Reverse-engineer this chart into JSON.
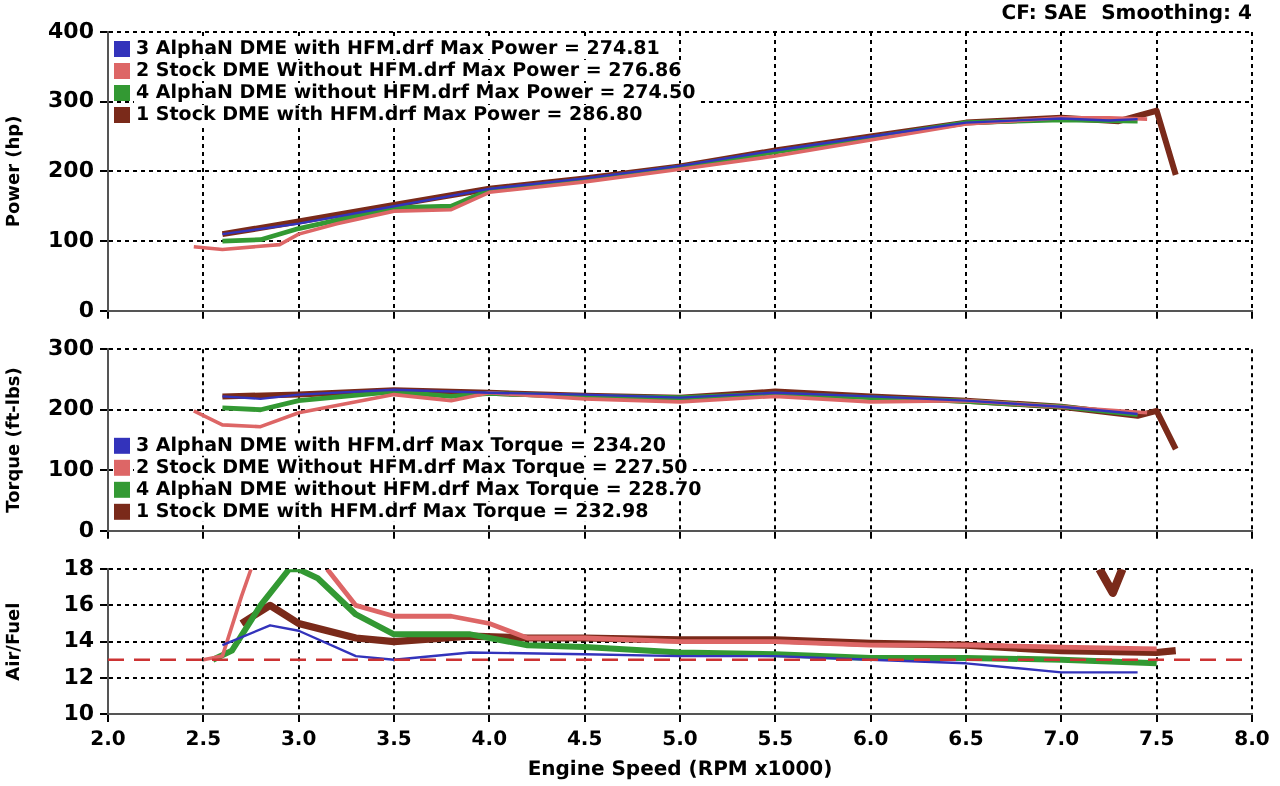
{
  "chart_data": [
    {
      "type": "line",
      "annotations": [
        "CF: SAE  Smoothing: 4"
      ],
      "ylabel": "Power (hp)",
      "xlim": [
        2.0,
        8.0
      ],
      "xticks": [
        {
          "value": 2.0,
          "label": null
        },
        {
          "value": 2.5,
          "label": null
        },
        {
          "value": 3.0,
          "label": null
        },
        {
          "value": 3.5,
          "label": null
        },
        {
          "value": 4.0,
          "label": null
        },
        {
          "value": 4.5,
          "label": null
        },
        {
          "value": 5.0,
          "label": null
        },
        {
          "value": 5.5,
          "label": null
        },
        {
          "value": 6.0,
          "label": null
        },
        {
          "value": 6.5,
          "label": null
        },
        {
          "value": 7.0,
          "label": null
        },
        {
          "value": 7.5,
          "label": null
        },
        {
          "value": 8.0,
          "label": null
        }
      ],
      "ylim": [
        0,
        400
      ],
      "yticks": [
        0,
        100,
        200,
        300,
        400
      ],
      "grid": true,
      "legend": "top left",
      "tick_labels": "y",
      "series": [
        {
          "name": "3 AlphaN DME with HFM.drf Max Power = 274.81",
          "color": "#3333bb",
          "x": [
            2.6,
            3.0,
            3.5,
            4.0,
            4.5,
            5.0,
            5.5,
            6.0,
            6.5,
            7.0,
            7.25,
            7.4
          ],
          "values": [
            110,
            125,
            150,
            175,
            190,
            208,
            230,
            250,
            270,
            276,
            273,
            275
          ]
        },
        {
          "name": "2 Stock DME Without HFM.drf Max Power = 276.86",
          "color": "#dd6666",
          "x": [
            2.45,
            2.6,
            2.9,
            3.0,
            3.2,
            3.5,
            3.8,
            4.0,
            4.5,
            5.0,
            5.5,
            6.0,
            6.5,
            7.0,
            7.25,
            7.45
          ],
          "values": [
            92,
            88,
            95,
            110,
            125,
            143,
            145,
            170,
            185,
            203,
            222,
            245,
            268,
            277,
            277,
            275
          ]
        },
        {
          "name": "4 AlphaN DME without HFM.drf Max Power = 274.50",
          "color": "#339933",
          "x": [
            2.6,
            2.8,
            3.0,
            3.5,
            3.8,
            4.0,
            4.5,
            5.0,
            5.5,
            6.0,
            6.5,
            7.0,
            7.4
          ],
          "values": [
            100,
            102,
            118,
            148,
            150,
            173,
            188,
            206,
            228,
            248,
            270,
            274,
            272
          ]
        },
        {
          "name": "1 Stock DME with HFM.drf Max Power = 286.80",
          "color": "#7a2a1a",
          "x": [
            2.6,
            3.0,
            3.5,
            4.0,
            4.5,
            5.0,
            5.5,
            6.0,
            6.5,
            7.0,
            7.3,
            7.5,
            7.6
          ],
          "values": [
            110,
            128,
            152,
            175,
            190,
            207,
            230,
            250,
            270,
            277,
            272,
            287,
            195
          ]
        }
      ]
    },
    {
      "type": "line",
      "ylabel": "Torque (ft-lbs)",
      "xlim": [
        2.0,
        8.0
      ],
      "xticks": [
        {
          "value": 2.0,
          "label": null
        },
        {
          "value": 2.5,
          "label": null
        },
        {
          "value": 3.0,
          "label": null
        },
        {
          "value": 3.5,
          "label": null
        },
        {
          "value": 4.0,
          "label": null
        },
        {
          "value": 4.5,
          "label": null
        },
        {
          "value": 5.0,
          "label": null
        },
        {
          "value": 5.5,
          "label": null
        },
        {
          "value": 6.0,
          "label": null
        },
        {
          "value": 6.5,
          "label": null
        },
        {
          "value": 7.0,
          "label": null
        },
        {
          "value": 7.5,
          "label": null
        },
        {
          "value": 8.0,
          "label": null
        }
      ],
      "ylim": [
        0,
        300
      ],
      "yticks": [
        0,
        100,
        200,
        300
      ],
      "grid": true,
      "legend": "bottom left",
      "tick_labels": "y",
      "series": [
        {
          "name": "3 AlphaN DME with HFM.drf Max Torque = 234.20",
          "color": "#3333bb",
          "x": [
            2.6,
            2.8,
            3.0,
            3.5,
            4.0,
            4.5,
            5.0,
            5.5,
            6.0,
            6.5,
            7.0,
            7.4
          ],
          "values": [
            222,
            218,
            225,
            233,
            228,
            225,
            220,
            228,
            222,
            215,
            205,
            193
          ]
        },
        {
          "name": "2 Stock DME Without HFM.drf Max Torque = 227.50",
          "color": "#dd6666",
          "x": [
            2.45,
            2.6,
            2.8,
            3.0,
            3.5,
            3.8,
            4.0,
            4.5,
            5.0,
            5.5,
            6.0,
            6.5,
            7.0,
            7.45
          ],
          "values": [
            198,
            175,
            172,
            195,
            225,
            215,
            228,
            218,
            213,
            222,
            213,
            215,
            205,
            195
          ]
        },
        {
          "name": "4 AlphaN DME without HFM.drf Max Torque = 228.70",
          "color": "#339933",
          "x": [
            2.6,
            2.8,
            3.0,
            3.5,
            3.8,
            4.0,
            4.5,
            5.0,
            5.5,
            6.0,
            6.5,
            7.0,
            7.4
          ],
          "values": [
            203,
            200,
            215,
            230,
            222,
            227,
            222,
            220,
            226,
            220,
            214,
            205,
            192
          ]
        },
        {
          "name": "1 Stock DME with HFM.drf Max Torque = 232.98",
          "color": "#7a2a1a",
          "x": [
            2.6,
            3.0,
            3.5,
            4.0,
            4.5,
            5.0,
            5.5,
            6.0,
            6.5,
            7.0,
            7.4,
            7.5,
            7.6
          ],
          "values": [
            222,
            225,
            232,
            228,
            223,
            220,
            230,
            222,
            215,
            205,
            190,
            198,
            135
          ]
        }
      ]
    },
    {
      "type": "line",
      "ylabel": "Air/Fuel",
      "xlabel": "Engine Speed (RPM x1000)",
      "xlim": [
        2.0,
        8.0
      ],
      "xticks": [
        {
          "value": 2.0,
          "label": "2.0"
        },
        {
          "value": 2.5,
          "label": "2.5"
        },
        {
          "value": 3.0,
          "label": "3.0"
        },
        {
          "value": 3.5,
          "label": "3.5"
        },
        {
          "value": 4.0,
          "label": "4.0"
        },
        {
          "value": 4.5,
          "label": "4.5"
        },
        {
          "value": 5.0,
          "label": "5.0"
        },
        {
          "value": 5.5,
          "label": "5.5"
        },
        {
          "value": 6.0,
          "label": "6.0"
        },
        {
          "value": 6.5,
          "label": "6.5"
        },
        {
          "value": 7.0,
          "label": "7.0"
        },
        {
          "value": 7.5,
          "label": "7.5"
        },
        {
          "value": 8.0,
          "label": "8.0"
        }
      ],
      "ylim": [
        10,
        18
      ],
      "yticks": [
        10,
        12,
        14,
        16,
        18
      ],
      "grid": true,
      "ref_lines": [
        {
          "axis": "y",
          "value": 13,
          "color": "#cc3333",
          "line_style": "dashed"
        }
      ],
      "series": [
        {
          "color": "#3333bb",
          "x": [
            2.6,
            2.85,
            3.0,
            3.3,
            3.5,
            3.9,
            4.5,
            5.0,
            5.5,
            6.0,
            6.5,
            7.0,
            7.4
          ],
          "values": [
            13.8,
            14.9,
            14.6,
            13.2,
            13.0,
            13.4,
            13.3,
            13.2,
            13.2,
            13.0,
            12.8,
            12.3,
            12.3
          ]
        },
        {
          "color": "#dd6666",
          "x": [
            2.5,
            2.6,
            2.7,
            2.75
          ],
          "values": [
            13,
            13.2,
            16.5,
            18
          ]
        },
        {
          "color": "#dd6666",
          "x": [
            3.15,
            3.3,
            3.5,
            3.8,
            4.0,
            4.2,
            4.5,
            5.0,
            5.5,
            6.0,
            6.5,
            7.0,
            7.5
          ],
          "values": [
            18,
            16,
            15.4,
            15.4,
            15.0,
            14.2,
            14.2,
            14.0,
            14.0,
            13.8,
            13.8,
            13.7,
            13.6
          ]
        },
        {
          "color": "#339933",
          "x": [
            2.55,
            2.65,
            2.8,
            2.95,
            3.0,
            3.1,
            3.3,
            3.5,
            3.9,
            4.2,
            4.5,
            5.0,
            5.5,
            6.0,
            6.5,
            7.0,
            7.5
          ],
          "values": [
            13,
            13.5,
            16,
            18,
            18,
            17.5,
            15.5,
            14.4,
            14.4,
            13.8,
            13.7,
            13.4,
            13.3,
            13.1,
            13.1,
            13.0,
            12.8
          ]
        },
        {
          "color": "#7a2a1a",
          "x": [
            2.7,
            2.85,
            3.0,
            3.3,
            3.5,
            3.9,
            4.2,
            4.5,
            5.0,
            5.5,
            6.0,
            6.5,
            7.0,
            7.5,
            7.6
          ],
          "values": [
            15,
            16,
            15,
            14.2,
            14.0,
            14.3,
            14.2,
            14.2,
            14.1,
            14.1,
            13.9,
            13.8,
            13.5,
            13.4,
            13.5
          ]
        },
        {
          "color": "#7a2a1a",
          "x": [
            7.2,
            7.27,
            7.32
          ],
          "values": [
            18,
            16.7,
            18
          ]
        }
      ]
    }
  ]
}
